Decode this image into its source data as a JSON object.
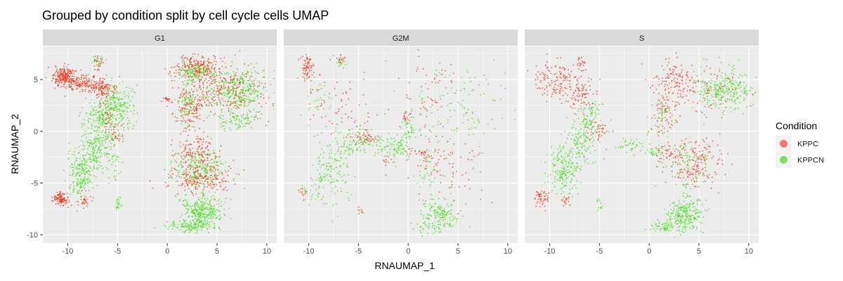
{
  "chart_data": {
    "type": "scatter",
    "title": "Grouped by condition split by cell cycle cells UMAP",
    "xlabel": "RNAUMAP_1",
    "ylabel": "RNAUMAP_2",
    "xlim": [
      -12.5,
      11
    ],
    "ylim": [
      -10.8,
      8.2
    ],
    "x_ticks": [
      -10,
      -5,
      0,
      5,
      10
    ],
    "y_ticks": [
      -10,
      -5,
      0,
      5
    ],
    "grid": true,
    "legend": {
      "title": "Condition",
      "position": "right",
      "items": [
        {
          "name": "KPPC",
          "color": "#f8766d"
        },
        {
          "name": "KPPCN",
          "color": "#7cdf5a"
        }
      ]
    },
    "series_colors": {
      "KPPC": "#f22b0f",
      "KPPCN": "#33e000"
    },
    "facets": [
      {
        "name": "G1",
        "clusters": [
          {
            "series": "KPPC",
            "cx": -10.3,
            "cy": 5.2,
            "sx": 0.55,
            "sy": 0.5,
            "n": 220
          },
          {
            "series": "KPPC",
            "cx": -8.3,
            "cy": 4.6,
            "sx": 1.0,
            "sy": 0.4,
            "n": 170
          },
          {
            "series": "KPPC",
            "cx": -6.3,
            "cy": 3.9,
            "sx": 0.6,
            "sy": 0.5,
            "n": 90
          },
          {
            "series": "KPPC",
            "cx": -7.0,
            "cy": 6.6,
            "sx": 0.3,
            "sy": 0.4,
            "n": 25
          },
          {
            "series": "KPPC",
            "cx": -10.7,
            "cy": -6.5,
            "sx": 0.4,
            "sy": 0.35,
            "n": 110
          },
          {
            "series": "KPPC",
            "cx": -8.4,
            "cy": -6.7,
            "sx": 0.3,
            "sy": 0.3,
            "n": 30
          },
          {
            "series": "KPPC",
            "cx": 3.0,
            "cy": 6.1,
            "sx": 1.1,
            "sy": 0.6,
            "n": 220
          },
          {
            "series": "KPPC",
            "cx": 6.3,
            "cy": 4.0,
            "sx": 1.8,
            "sy": 1.2,
            "n": 260
          },
          {
            "series": "KPPC",
            "cx": 2.2,
            "cy": 2.4,
            "sx": 0.7,
            "sy": 1.1,
            "n": 140
          },
          {
            "series": "KPPC",
            "cx": 3.0,
            "cy": -2.0,
            "sx": 1.1,
            "sy": 0.9,
            "n": 150
          },
          {
            "series": "KPPC",
            "cx": 3.2,
            "cy": -4.6,
            "sx": 1.6,
            "sy": 0.8,
            "n": 220
          },
          {
            "series": "KPPC",
            "cx": 0.1,
            "cy": 3.0,
            "sx": 0.3,
            "sy": 0.15,
            "n": 20
          },
          {
            "series": "KPPC",
            "cx": -5.2,
            "cy": -0.5,
            "sx": 0.5,
            "sy": 0.6,
            "n": 30
          },
          {
            "series": "KPPC",
            "cx": -6.0,
            "cy": 1.5,
            "sx": 0.5,
            "sy": 0.8,
            "n": 40
          },
          {
            "series": "KPPCN",
            "cx": -5.0,
            "cy": 2.6,
            "sx": 0.8,
            "sy": 1.0,
            "n": 200
          },
          {
            "series": "KPPCN",
            "cx": -6.8,
            "cy": 1.4,
            "sx": 0.8,
            "sy": 0.8,
            "n": 130
          },
          {
            "series": "KPPCN",
            "cx": -7.3,
            "cy": -1.7,
            "sx": 0.5,
            "sy": 1.0,
            "n": 120
          },
          {
            "series": "KPPCN",
            "cx": -8.6,
            "cy": -4.0,
            "sx": 0.7,
            "sy": 1.2,
            "n": 200
          },
          {
            "series": "KPPCN",
            "cx": -5.6,
            "cy": -1.6,
            "sx": 0.6,
            "sy": 1.5,
            "n": 90
          },
          {
            "series": "KPPCN",
            "cx": -4.9,
            "cy": -7.0,
            "sx": 0.15,
            "sy": 0.4,
            "n": 25
          },
          {
            "series": "KPPCN",
            "cx": -7.0,
            "cy": 6.8,
            "sx": 0.3,
            "sy": 0.3,
            "n": 20
          },
          {
            "series": "KPPCN",
            "cx": 6.8,
            "cy": 4.0,
            "sx": 1.6,
            "sy": 1.0,
            "n": 300
          },
          {
            "series": "KPPCN",
            "cx": 7.0,
            "cy": 1.0,
            "sx": 1.0,
            "sy": 0.5,
            "n": 80
          },
          {
            "series": "KPPCN",
            "cx": 2.7,
            "cy": 5.8,
            "sx": 1.0,
            "sy": 0.6,
            "n": 120
          },
          {
            "series": "KPPCN",
            "cx": 2.0,
            "cy": 2.5,
            "sx": 0.6,
            "sy": 1.0,
            "n": 80
          },
          {
            "series": "KPPCN",
            "cx": 3.3,
            "cy": -3.7,
            "sx": 1.3,
            "sy": 1.0,
            "n": 200
          },
          {
            "series": "KPPCN",
            "cx": 3.6,
            "cy": -7.6,
            "sx": 1.0,
            "sy": 0.7,
            "n": 280
          },
          {
            "series": "KPPCN",
            "cx": 2.4,
            "cy": -9.2,
            "sx": 1.2,
            "sy": 0.3,
            "n": 130
          }
        ]
      },
      {
        "name": "G2M",
        "clusters": [
          {
            "series": "KPPC",
            "cx": -10.0,
            "cy": 6.1,
            "sx": 0.4,
            "sy": 0.6,
            "n": 70
          },
          {
            "series": "KPPC",
            "cx": -6.8,
            "cy": 7.0,
            "sx": 0.2,
            "sy": 0.2,
            "n": 15
          },
          {
            "series": "KPPC",
            "cx": -7.0,
            "cy": 3.0,
            "sx": 1.8,
            "sy": 1.8,
            "n": 60
          },
          {
            "series": "KPPC",
            "cx": -5.0,
            "cy": -0.2,
            "sx": 0.5,
            "sy": 0.5,
            "n": 30
          },
          {
            "series": "KPPC",
            "cx": -4.0,
            "cy": -0.6,
            "sx": 0.4,
            "sy": 0.3,
            "n": 25
          },
          {
            "series": "KPPC",
            "cx": -0.2,
            "cy": 1.4,
            "sx": 0.2,
            "sy": 0.3,
            "n": 18
          },
          {
            "series": "KPPC",
            "cx": 1.3,
            "cy": -2.2,
            "sx": 0.8,
            "sy": 0.3,
            "n": 30
          },
          {
            "series": "KPPC",
            "cx": 4.0,
            "cy": -3.5,
            "sx": 2.0,
            "sy": 2.0,
            "n": 80
          },
          {
            "series": "KPPC",
            "cx": 2.2,
            "cy": 3.5,
            "sx": 1.4,
            "sy": 2.2,
            "n": 60
          },
          {
            "series": "KPPC",
            "cx": -2.2,
            "cy": -2.8,
            "sx": 0.2,
            "sy": 0.2,
            "n": 10
          },
          {
            "series": "KPPC",
            "cx": -10.6,
            "cy": -5.9,
            "sx": 0.3,
            "sy": 0.3,
            "n": 12
          },
          {
            "series": "KPPC",
            "cx": -4.9,
            "cy": -7.6,
            "sx": 0.2,
            "sy": 0.2,
            "n": 8
          },
          {
            "series": "KPPCN",
            "cx": -7.8,
            "cy": -3.8,
            "sx": 1.1,
            "sy": 1.8,
            "n": 150
          },
          {
            "series": "KPPCN",
            "cx": -5.5,
            "cy": -1.0,
            "sx": 0.8,
            "sy": 0.8,
            "n": 60
          },
          {
            "series": "KPPCN",
            "cx": -3.0,
            "cy": -1.3,
            "sx": 1.0,
            "sy": 0.5,
            "n": 60
          },
          {
            "series": "KPPCN",
            "cx": -1.0,
            "cy": -1.6,
            "sx": 0.6,
            "sy": 0.5,
            "n": 50
          },
          {
            "series": "KPPCN",
            "cx": 0.1,
            "cy": 0.3,
            "sx": 0.4,
            "sy": 0.7,
            "n": 40
          },
          {
            "series": "KPPCN",
            "cx": 3.4,
            "cy": -8.0,
            "sx": 1.0,
            "sy": 0.7,
            "n": 130
          },
          {
            "series": "KPPCN",
            "cx": 2.0,
            "cy": -9.2,
            "sx": 0.8,
            "sy": 0.3,
            "n": 40
          },
          {
            "series": "KPPCN",
            "cx": 4.5,
            "cy": 2.0,
            "sx": 2.5,
            "sy": 2.2,
            "n": 120
          },
          {
            "series": "KPPCN",
            "cx": 1.8,
            "cy": -4.5,
            "sx": 0.6,
            "sy": 1.5,
            "n": 40
          },
          {
            "series": "KPPCN",
            "cx": -6.8,
            "cy": 6.6,
            "sx": 0.3,
            "sy": 0.3,
            "n": 15
          },
          {
            "series": "KPPCN",
            "cx": -9.0,
            "cy": 3.0,
            "sx": 1.0,
            "sy": 1.5,
            "n": 25
          },
          {
            "series": "KPPCN",
            "cx": -9.8,
            "cy": -6.0,
            "sx": 0.6,
            "sy": 0.6,
            "n": 15
          }
        ]
      },
      {
        "name": "S",
        "clusters": [
          {
            "series": "KPPC",
            "cx": -9.6,
            "cy": 5.0,
            "sx": 1.0,
            "sy": 0.9,
            "n": 120
          },
          {
            "series": "KPPC",
            "cx": -7.0,
            "cy": 3.8,
            "sx": 0.8,
            "sy": 1.0,
            "n": 100
          },
          {
            "series": "KPPC",
            "cx": -6.8,
            "cy": 6.6,
            "sx": 0.3,
            "sy": 0.4,
            "n": 20
          },
          {
            "series": "KPPC",
            "cx": -5.0,
            "cy": 0.1,
            "sx": 0.5,
            "sy": 0.5,
            "n": 40
          },
          {
            "series": "KPPC",
            "cx": -10.7,
            "cy": -6.4,
            "sx": 0.4,
            "sy": 0.4,
            "n": 50
          },
          {
            "series": "KPPC",
            "cx": -8.4,
            "cy": -6.6,
            "sx": 0.3,
            "sy": 0.3,
            "n": 15
          },
          {
            "series": "KPPC",
            "cx": 2.5,
            "cy": 4.8,
            "sx": 1.2,
            "sy": 1.2,
            "n": 140
          },
          {
            "series": "KPPC",
            "cx": 1.5,
            "cy": 1.5,
            "sx": 0.7,
            "sy": 1.0,
            "n": 60
          },
          {
            "series": "KPPC",
            "cx": 4.5,
            "cy": -3.0,
            "sx": 1.4,
            "sy": 1.2,
            "n": 180
          },
          {
            "series": "KPPC",
            "cx": 1.8,
            "cy": -2.1,
            "sx": 0.8,
            "sy": 0.4,
            "n": 40
          },
          {
            "series": "KPPC",
            "cx": 6.8,
            "cy": 4.0,
            "sx": 1.5,
            "sy": 1.0,
            "n": 60
          },
          {
            "series": "KPPCN",
            "cx": -8.5,
            "cy": -3.8,
            "sx": 0.9,
            "sy": 1.3,
            "n": 180
          },
          {
            "series": "KPPCN",
            "cx": -6.8,
            "cy": -1.0,
            "sx": 0.9,
            "sy": 1.2,
            "n": 130
          },
          {
            "series": "KPPCN",
            "cx": -6.0,
            "cy": 1.5,
            "sx": 0.6,
            "sy": 0.8,
            "n": 70
          },
          {
            "series": "KPPCN",
            "cx": -2.0,
            "cy": -1.4,
            "sx": 1.0,
            "sy": 0.4,
            "n": 40
          },
          {
            "series": "KPPCN",
            "cx": 0.3,
            "cy": -2.0,
            "sx": 0.6,
            "sy": 0.3,
            "n": 25
          },
          {
            "series": "KPPCN",
            "cx": 7.2,
            "cy": 4.0,
            "sx": 1.5,
            "sy": 1.0,
            "n": 260
          },
          {
            "series": "KPPCN",
            "cx": 3.5,
            "cy": -8.0,
            "sx": 0.9,
            "sy": 0.8,
            "n": 240
          },
          {
            "series": "KPPCN",
            "cx": 1.5,
            "cy": -9.3,
            "sx": 0.8,
            "sy": 0.3,
            "n": 60
          },
          {
            "series": "KPPCN",
            "cx": 4.0,
            "cy": -3.3,
            "sx": 1.2,
            "sy": 1.2,
            "n": 80
          },
          {
            "series": "KPPCN",
            "cx": 1.2,
            "cy": 1.6,
            "sx": 0.6,
            "sy": 0.8,
            "n": 35
          },
          {
            "series": "KPPCN",
            "cx": -4.9,
            "cy": -7.2,
            "sx": 0.2,
            "sy": 0.4,
            "n": 12
          }
        ]
      }
    ]
  }
}
